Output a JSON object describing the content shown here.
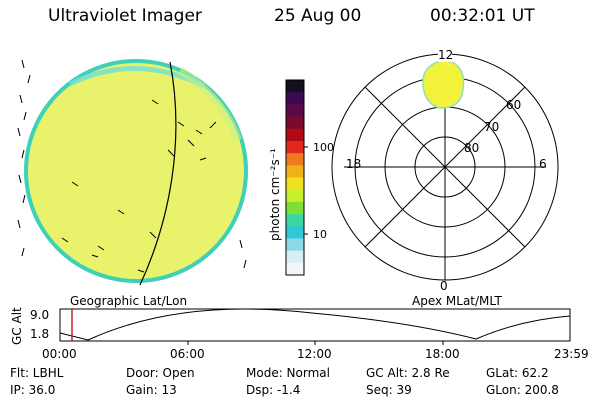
{
  "header": {
    "instrument": "Ultraviolet Imager",
    "date": "25 Aug 00",
    "time": "00:32:01 UT"
  },
  "colorbar": {
    "unit_label": "photon cm⁻²s⁻¹",
    "ticks": [
      "100",
      "10"
    ],
    "colors": [
      "#101020",
      "#3a0a52",
      "#5b0a46",
      "#7a0a2e",
      "#b00a14",
      "#e0281e",
      "#f07a1c",
      "#f0b018",
      "#f0e020",
      "#c8f028",
      "#7ee036",
      "#3cd6a0",
      "#30c8d8",
      "#8cd8e8",
      "#d8eef2",
      "#f2f6f6"
    ]
  },
  "geographic_panel": {
    "label": "Geographic Lat/Lon"
  },
  "polar_panel": {
    "label": "Apex MLat/MLT",
    "mlt_labels": {
      "top": "12",
      "left": "18",
      "right": "6",
      "bottom": "0"
    },
    "lat_labels": [
      "60",
      "70",
      "80"
    ]
  },
  "altitude_plot": {
    "ylabel": "GC Alt",
    "yticks": [
      "9.0",
      "1.8"
    ],
    "xticks": [
      "00:00",
      "06:00",
      "12:00",
      "18:00",
      "23:59"
    ]
  },
  "footer": {
    "row1": [
      "Flt: LBHL",
      "Door: Open",
      "Mode: Normal",
      "GC Alt: 2.8 Re",
      "GLat:  62.2"
    ],
    "row2": [
      "IP: 36.0",
      "Gain: 13",
      "Dsp:    -1.4",
      "Seq: 39",
      "GLon: 200.8"
    ]
  }
}
